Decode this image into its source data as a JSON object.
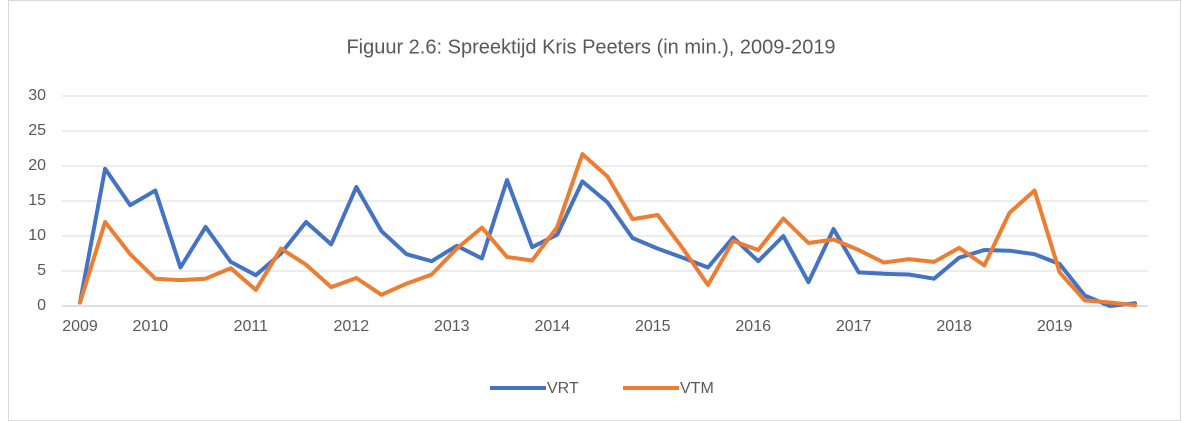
{
  "chart_data": {
    "type": "line",
    "title": "Figuur 2.6: Spreektijd Kris Peeters (in min.), 2009-2019",
    "categories": [
      "2009",
      null,
      null,
      "2010",
      null,
      null,
      null,
      "2011",
      null,
      null,
      null,
      "2012",
      null,
      null,
      null,
      "2013",
      null,
      null,
      null,
      "2014",
      null,
      null,
      null,
      "2015",
      null,
      null,
      null,
      "2016",
      null,
      null,
      null,
      "2017",
      null,
      null,
      null,
      "2018",
      null,
      null,
      null,
      "2019",
      null,
      null,
      null
    ],
    "series": [
      {
        "name": "VRT",
        "color": "#4472c4",
        "values": [
          0.5,
          19.6,
          14.4,
          16.5,
          5.5,
          11.3,
          6.3,
          4.4,
          7.5,
          12.0,
          8.8,
          17.0,
          10.7,
          7.4,
          6.4,
          8.6,
          6.8,
          18.0,
          8.4,
          10.2,
          17.8,
          14.8,
          9.7,
          8.2,
          6.9,
          5.5,
          9.8,
          6.4,
          10.0,
          3.4,
          11.0,
          4.8,
          4.6,
          4.5,
          3.9,
          6.9,
          8.0,
          7.9,
          7.4,
          6.0,
          1.5,
          0.0,
          0.4
        ]
      },
      {
        "name": "VTM",
        "color": "#ed7d31",
        "values": [
          0.5,
          12.0,
          7.4,
          3.9,
          3.7,
          3.9,
          5.4,
          2.3,
          8.2,
          5.9,
          2.7,
          4.0,
          1.6,
          3.2,
          4.5,
          8.2,
          11.2,
          7.0,
          6.5,
          11.3,
          21.7,
          18.5,
          12.4,
          13.0,
          8.2,
          3.0,
          9.3,
          8.0,
          12.5,
          9.0,
          9.5,
          8.0,
          6.2,
          6.7,
          6.3,
          8.3,
          5.8,
          13.3,
          16.5,
          4.8,
          0.8,
          0.5,
          0.1
        ]
      }
    ],
    "ylim": [
      0,
      30
    ],
    "yticks": [
      0,
      5,
      10,
      15,
      20,
      25,
      30
    ],
    "grid": true,
    "legend": "bottom"
  }
}
